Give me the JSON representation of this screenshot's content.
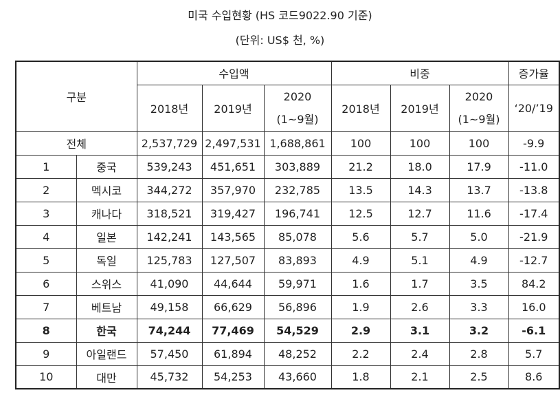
{
  "title": "미국 수입현황 (HS 코드9022.90 기준)",
  "subtitle": "(단위: US$ 천, %)",
  "headers": {
    "category": "구분",
    "import_amount": "수입액",
    "share": "비중",
    "growth": "증가율",
    "y2018": "2018년",
    "y2019": "2019년",
    "y2020": "2020",
    "y2020_note": "(1~9월)",
    "growth_period": "‘20/’19"
  },
  "total": {
    "label": "전체",
    "imp2018": "2,537,729",
    "imp2019": "2,497,531",
    "imp2020": "1,688,861",
    "sh2018": "100",
    "sh2019": "100",
    "sh2020": "100",
    "growth": "-9.9"
  },
  "rows": [
    {
      "rank": "1",
      "country": "중국",
      "imp2018": "539,243",
      "imp2019": "451,651",
      "imp2020": "303,889",
      "sh2018": "21.2",
      "sh2019": "18.0",
      "sh2020": "17.9",
      "growth": "-11.0"
    },
    {
      "rank": "2",
      "country": "멕시코",
      "imp2018": "344,272",
      "imp2019": "357,970",
      "imp2020": "232,785",
      "sh2018": "13.5",
      "sh2019": "14.3",
      "sh2020": "13.7",
      "growth": "-13.8"
    },
    {
      "rank": "3",
      "country": "캐나다",
      "imp2018": "318,521",
      "imp2019": "319,427",
      "imp2020": "196,741",
      "sh2018": "12.5",
      "sh2019": "12.7",
      "sh2020": "11.6",
      "growth": "-17.4"
    },
    {
      "rank": "4",
      "country": "일본",
      "imp2018": "142,241",
      "imp2019": "143,565",
      "imp2020": "85,078",
      "sh2018": "5.6",
      "sh2019": "5.7",
      "sh2020": "5.0",
      "growth": "-21.9"
    },
    {
      "rank": "5",
      "country": "독일",
      "imp2018": "125,783",
      "imp2019": "127,507",
      "imp2020": "83,893",
      "sh2018": "4.9",
      "sh2019": "5.1",
      "sh2020": "4.9",
      "growth": "-12.7"
    },
    {
      "rank": "6",
      "country": "스위스",
      "imp2018": "41,090",
      "imp2019": "44,644",
      "imp2020": "59,971",
      "sh2018": "1.6",
      "sh2019": "1.7",
      "sh2020": "3.5",
      "growth": "84.2"
    },
    {
      "rank": "7",
      "country": "베트남",
      "imp2018": "49,158",
      "imp2019": "66,629",
      "imp2020": "56,896",
      "sh2018": "1.9",
      "sh2019": "2.6",
      "sh2020": "3.3",
      "growth": "16.0"
    },
    {
      "rank": "8",
      "country": "한국",
      "imp2018": "74,244",
      "imp2019": "77,469",
      "imp2020": "54,529",
      "sh2018": "2.9",
      "sh2019": "3.1",
      "sh2020": "3.2",
      "growth": "-6.1"
    },
    {
      "rank": "9",
      "country": "아일랜드",
      "imp2018": "57,450",
      "imp2019": "61,894",
      "imp2020": "48,252",
      "sh2018": "2.2",
      "sh2019": "2.4",
      "sh2020": "2.8",
      "growth": "5.7"
    },
    {
      "rank": "10",
      "country": "대만",
      "imp2018": "45,732",
      "imp2019": "54,253",
      "imp2020": "43,660",
      "sh2018": "1.8",
      "sh2019": "2.1",
      "sh2020": "2.5",
      "growth": "8.6"
    }
  ],
  "highlight_rank": "8"
}
